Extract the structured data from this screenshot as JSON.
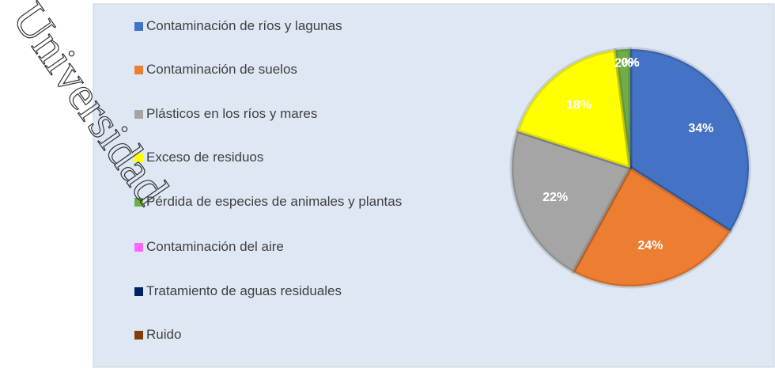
{
  "chart_data": {
    "type": "pie",
    "watermark": "Universidad",
    "categories": [
      "Contaminación de ríos y lagunas",
      "Contaminación de suelos",
      "Plásticos en los ríos y mares",
      "Exceso de residuos",
      "Pérdida de especies de animales y plantas",
      "Contaminación del aire",
      "Tratamiento de aguas residuales",
      "Ruido"
    ],
    "values": [
      34,
      24,
      22,
      18,
      2,
      0,
      0,
      0
    ],
    "value_labels": [
      "34%",
      "24%",
      "22%",
      "18%",
      "2%",
      "0%",
      "0%",
      "0%"
    ],
    "colors": [
      "#4472c4",
      "#ed7d31",
      "#a5a5a5",
      "#ffff00",
      "#70ad47",
      "#ff66ff",
      "#002060",
      "#843c0c"
    ],
    "legend": "left"
  }
}
